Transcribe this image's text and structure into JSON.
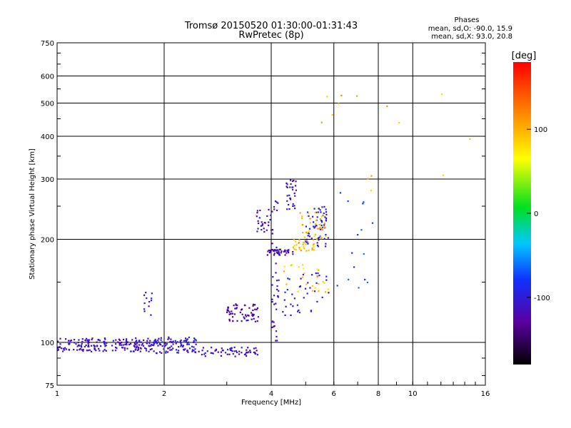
{
  "chart_data": {
    "type": "scatter",
    "title": "Tromsø 20150520 01:30:00-01:31:43",
    "subtitle": "RwPretec (8p)",
    "xlabel": "Frequency [MHz]",
    "ylabel": "Stationary phase Virtual Height [km]",
    "x_scale": "log",
    "y_scale": "log",
    "xlim": [
      1,
      16
    ],
    "ylim": [
      75,
      750
    ],
    "x_ticks": [
      1,
      2,
      4,
      6,
      8,
      10,
      16
    ],
    "x_tick_labels": [
      "1",
      "2",
      "4",
      "6",
      "8",
      "10",
      "16"
    ],
    "y_ticks": [
      75,
      100,
      200,
      300,
      400,
      500,
      600,
      750
    ],
    "y_tick_labels": [
      "75",
      "100",
      "200",
      "300",
      "400",
      "500",
      "600",
      "750"
    ],
    "grid": true,
    "phases_header": "Phases",
    "phases_o": "mean, sd,O: -90.0, 15.9",
    "phases_x": "mean, sd,X:  93.0, 20.8",
    "colorbar": {
      "label": "[deg]",
      "range": [
        -180,
        180
      ],
      "ticks": [
        100,
        0,
        -100
      ],
      "tick_labels": [
        "100",
        "0",
        "-100"
      ]
    },
    "clusters": [
      {
        "x": [
          1.0,
          1.9
        ],
        "y": [
          94,
          103
        ],
        "phase": -110,
        "n": 200
      },
      {
        "x": [
          1.9,
          2.5
        ],
        "y": [
          93,
          104
        ],
        "phase": -105,
        "n": 90
      },
      {
        "x": [
          1.75,
          1.85
        ],
        "y": [
          120,
          140
        ],
        "phase": -100,
        "n": 12
      },
      {
        "x": [
          2.5,
          3.7
        ],
        "y": [
          91,
          97
        ],
        "phase": -112,
        "n": 60
      },
      {
        "x": [
          3.0,
          3.7
        ],
        "y": [
          115,
          130
        ],
        "phase": -125,
        "n": 60
      },
      {
        "x": [
          3.6,
          4.0
        ],
        "y": [
          210,
          245
        ],
        "phase": -115,
        "n": 25
      },
      {
        "x": [
          3.9,
          4.6
        ],
        "y": [
          180,
          187
        ],
        "phase": -120,
        "n": 45
      },
      {
        "x": [
          4.0,
          4.2
        ],
        "y": [
          100,
          270
        ],
        "phase": -110,
        "n": 40
      },
      {
        "x": [
          4.4,
          4.7
        ],
        "y": [
          245,
          300
        ],
        "phase": -110,
        "n": 30
      },
      {
        "x": [
          4.6,
          5.3
        ],
        "y": [
          185,
          200
        ],
        "phase": 95,
        "n": 35
      },
      {
        "x": [
          5.0,
          5.8
        ],
        "y": [
          190,
          250
        ],
        "phase": -100,
        "n": 60
      },
      {
        "x": [
          4.8,
          5.8
        ],
        "y": [
          200,
          240
        ],
        "phase": 100,
        "n": 35
      },
      {
        "x": [
          4.3,
          5.8
        ],
        "y": [
          120,
          160
        ],
        "phase": -105,
        "n": 40
      },
      {
        "x": [
          4.3,
          5.8
        ],
        "y": [
          140,
          170
        ],
        "phase": 90,
        "n": 25
      },
      {
        "x": [
          6.0,
          7.8
        ],
        "y": [
          140,
          280
        ],
        "phase": -80,
        "n": 15
      },
      {
        "x": [
          5.5,
          15.0
        ],
        "y": [
          250,
          540
        ],
        "phase": 100,
        "n": 14
      }
    ]
  }
}
